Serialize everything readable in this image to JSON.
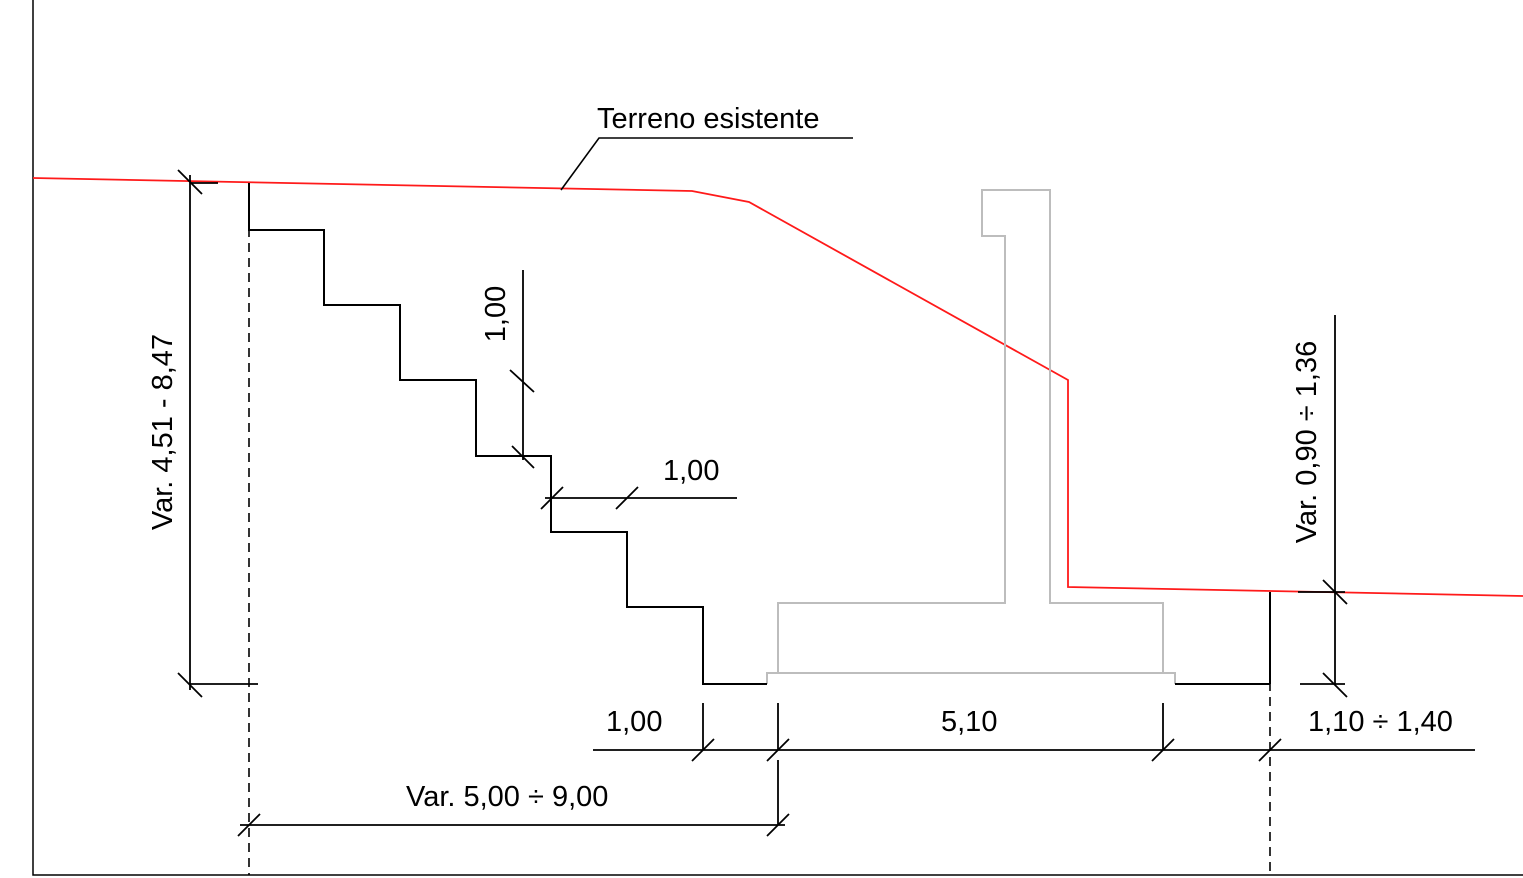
{
  "labels": {
    "terrain": "Terreno esistente",
    "excavation_depth": "Var. 4,51 - 8,47",
    "step_height": "1,00",
    "step_width": "1,00",
    "toe_clearance": "1,00",
    "foundation_width": "5,10",
    "heel_clearance": "1,10 ÷ 1,40",
    "total_offset": "Var. 5,00 ÷ 9,00",
    "right_height": "Var. 0,90 ÷ 1,36"
  },
  "colors": {
    "terrain_line": "#ff1a1a",
    "wall_outline": "#bdbdbd",
    "ink": "#000000"
  }
}
